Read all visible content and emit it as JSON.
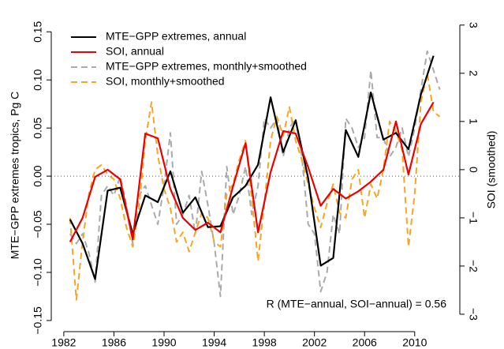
{
  "chart_data": {
    "type": "line",
    "ylabel": "MTE−GPP extremes tropics, Pg C",
    "y2label": "SOI (smoothed)",
    "annotation": "R (MTE−annual, SOI−annual) = 0.56",
    "xlim": [
      1981,
      2013.6
    ],
    "xticks": [
      1982,
      1986,
      1990,
      1994,
      1998,
      2002,
      2006,
      2010
    ],
    "ylim": [
      -0.155,
      0.165
    ],
    "yticks": [
      {
        "value": -0.15,
        "label": "−0.15"
      },
      {
        "value": -0.1,
        "label": "−0.10"
      },
      {
        "value": -0.05,
        "label": "−0.05"
      },
      {
        "value": 0,
        "label": "0.00"
      },
      0.05,
      {
        "value": 0.1,
        "label": "0.10"
      },
      0.15
    ],
    "y2lim": [
      -3.23,
      3.16
    ],
    "y2ticks": [
      {
        "value": -3,
        "label": "−3"
      },
      {
        "value": -2,
        "label": "−2"
      },
      {
        "value": -1,
        "label": "−1"
      },
      0,
      1,
      2,
      3
    ],
    "zero_line": true,
    "legend": "top-left",
    "series": [
      {
        "name": "MTE−GPP extremes, annual",
        "color": "#000000",
        "dashed": false,
        "x": [
          1982.5,
          1983.5,
          1984.5,
          1985.5,
          1986.5,
          1987.5,
          1988.5,
          1989.5,
          1990.5,
          1991.5,
          1992.5,
          1993.5,
          1994.5,
          1995.5,
          1996.5,
          1997.5,
          1998.5,
          1999.5,
          2000.5,
          2001.5,
          2002.5,
          2003.5,
          2004.5,
          2005.5,
          2006.5,
          2007.5,
          2008.5,
          2009.5,
          2010.5,
          2011.5
        ],
        "values": [
          -0.045,
          -0.07,
          -0.107,
          -0.015,
          -0.012,
          -0.06,
          -0.02,
          -0.027,
          0.005,
          -0.038,
          -0.022,
          -0.053,
          -0.052,
          -0.022,
          -0.01,
          0.012,
          0.082,
          0.025,
          0.058,
          -0.002,
          -0.093,
          -0.085,
          0.048,
          0.02,
          0.087,
          0.038,
          0.045,
          0.028,
          0.085,
          0.125
        ]
      },
      {
        "name": "SOI, annual",
        "color": "#ee0000",
        "dashed": false,
        "axis": "y2",
        "x": [
          1982.5,
          1983.5,
          1984.5,
          1985.5,
          1986.5,
          1987.5,
          1988.5,
          1989.5,
          1990.5,
          1991.5,
          1992.5,
          1993.5,
          1994.5,
          1995.5,
          1996.5,
          1997.5,
          1998.5,
          1999.5,
          2000.5,
          2001.5,
          2002.5,
          2003.5,
          2004.5,
          2005.5,
          2006.5,
          2007.5,
          2008.5,
          2009.5,
          2010.5,
          2011.5
        ],
        "values": [
          -1.5,
          -1.0,
          -0.15,
          0.0,
          -0.2,
          -1.45,
          0.75,
          0.65,
          -0.4,
          -1.0,
          -1.25,
          -1.1,
          -1.3,
          -0.35,
          0.55,
          -1.3,
          -0.05,
          0.8,
          0.75,
          0.05,
          -0.75,
          -0.4,
          -0.6,
          -0.45,
          -0.25,
          0.0,
          1.0,
          -0.1,
          0.95,
          1.4
        ]
      },
      {
        "name": "MTE−GPP extremes, monthly+smoothed",
        "color": "#aaaaaa",
        "dashed": true,
        "x": [
          1982.5,
          1983,
          1983.5,
          1984,
          1984.5,
          1985,
          1985.5,
          1986,
          1986.5,
          1987,
          1987.5,
          1988,
          1988.5,
          1989,
          1989.5,
          1990,
          1990.5,
          1991,
          1991.5,
          1992,
          1992.5,
          1993,
          1993.5,
          1994,
          1994.5,
          1995,
          1995.5,
          1996,
          1996.5,
          1997,
          1997.5,
          1998,
          1998.5,
          1999,
          1999.5,
          2000,
          2000.5,
          2001,
          2001.5,
          2002,
          2002.5,
          2003,
          2003.5,
          2004,
          2004.5,
          2005,
          2005.5,
          2006,
          2006.5,
          2007,
          2007.5,
          2008,
          2008.5,
          2009,
          2009.5,
          2010,
          2010.5,
          2011,
          2011.5,
          2012
        ],
        "values": [
          -0.06,
          -0.07,
          -0.06,
          -0.08,
          -0.11,
          -0.02,
          -0.01,
          -0.02,
          0.0,
          -0.03,
          -0.07,
          -0.02,
          -0.01,
          -0.03,
          -0.05,
          -0.01,
          0.045,
          -0.05,
          -0.04,
          -0.02,
          -0.06,
          0.005,
          -0.03,
          -0.07,
          -0.125,
          0.01,
          -0.04,
          -0.02,
          0.01,
          -0.04,
          -0.01,
          0.06,
          0.05,
          0.06,
          0.02,
          0.05,
          0.06,
          0.02,
          -0.05,
          -0.06,
          -0.12,
          -0.1,
          -0.04,
          -0.06,
          0.06,
          0.05,
          0.03,
          0.04,
          0.11,
          0.04,
          0.04,
          0.02,
          0.03,
          0.05,
          0.02,
          0.05,
          0.09,
          0.13,
          0.11,
          0.09
        ]
      },
      {
        "name": "SOI, monthly+smoothed",
        "color": "#f5a623",
        "dashed": true,
        "axis": "y2",
        "x": [
          1982.5,
          1983,
          1983.5,
          1984,
          1984.5,
          1985,
          1985.5,
          1986,
          1986.5,
          1987,
          1987.5,
          1988,
          1988.5,
          1989,
          1989.5,
          1990,
          1990.5,
          1991,
          1991.5,
          1992,
          1992.5,
          1993,
          1993.5,
          1994,
          1994.5,
          1995,
          1995.5,
          1996,
          1996.5,
          1997,
          1997.5,
          1998,
          1998.5,
          1999,
          1999.5,
          2000,
          2000.5,
          2001,
          2001.5,
          2002,
          2002.5,
          2003,
          2003.5,
          2004,
          2004.5,
          2005,
          2005.5,
          2006,
          2006.5,
          2007,
          2007.5,
          2008,
          2008.5,
          2009,
          2009.5,
          2010,
          2010.5,
          2011,
          2011.5,
          2012
        ],
        "values": [
          -1.0,
          -2.7,
          -1.5,
          -0.5,
          0.0,
          0.1,
          -0.1,
          -0.2,
          -0.6,
          -1.2,
          -1.6,
          -0.8,
          0.6,
          1.4,
          0.3,
          -0.4,
          -0.8,
          -1.5,
          -1.3,
          -1.7,
          -1.3,
          -0.9,
          -1.0,
          -1.5,
          -1.6,
          -0.5,
          -0.3,
          0.2,
          0.6,
          -0.6,
          -1.9,
          -0.7,
          0.6,
          1.1,
          0.7,
          1.3,
          0.6,
          0.2,
          -0.3,
          -0.8,
          -1.2,
          -0.7,
          -0.3,
          -0.9,
          -1.0,
          -0.2,
          0.0,
          -1.0,
          -0.3,
          -0.6,
          0.0,
          1.0,
          0.8,
          0.4,
          -1.6,
          -0.5,
          1.4,
          2.0,
          1.2,
          1.1
        ]
      }
    ]
  }
}
